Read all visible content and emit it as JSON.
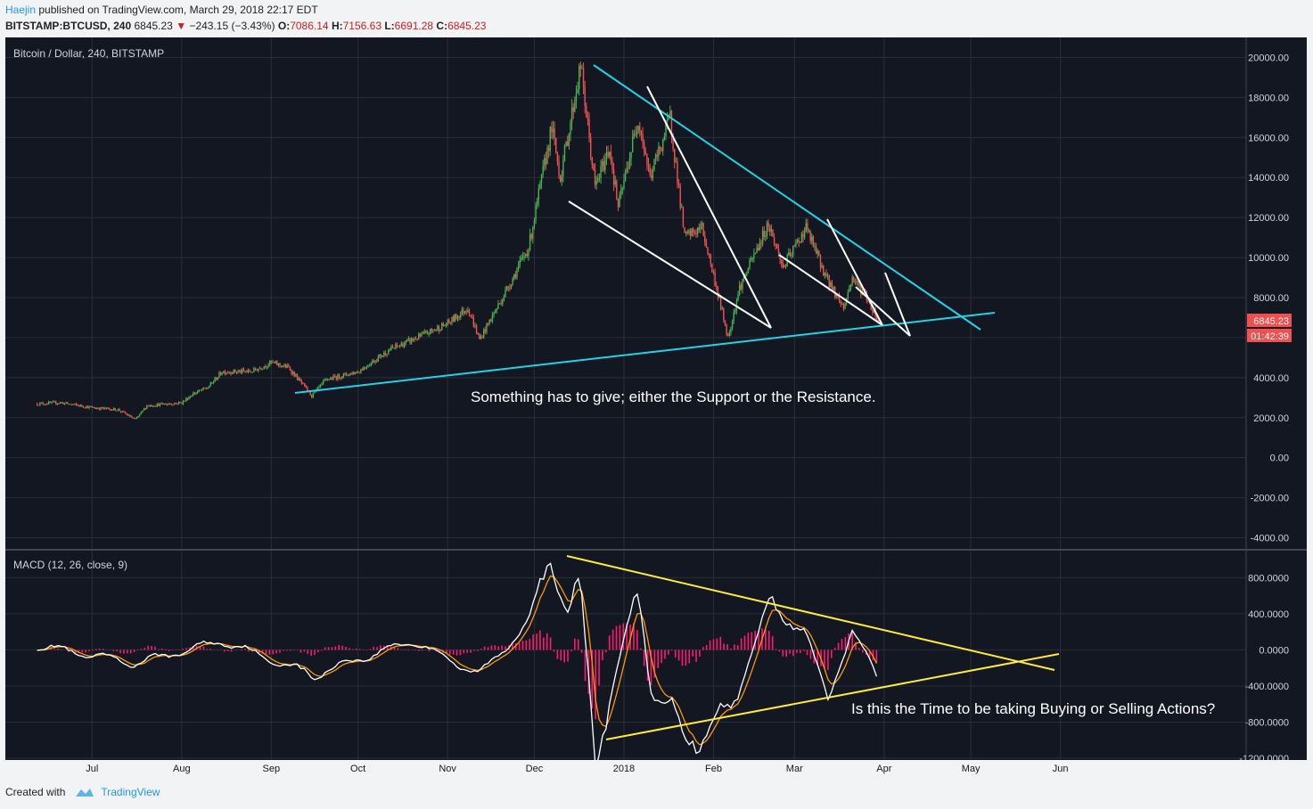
{
  "header": {
    "author": "Haejin",
    "published": "published on TradingView.com, March 29, 2018 22:17 EDT",
    "symbol": "BITSTAMP:BTCUSD, 240",
    "last": "6845.23",
    "down_arrow": "▼",
    "change": "−243.15 (−3.43%)",
    "o_label": "O:",
    "o_value": "7086.14",
    "h_label": "H:",
    "h_value": "7156.63",
    "l_label": "L:",
    "l_value": "6691.28",
    "c_label": "C:",
    "c_value": "6845.23"
  },
  "footer": {
    "created_with": "Created with",
    "brand": "TradingView"
  },
  "colors": {
    "background": "#131722",
    "grid": "#2a2e39",
    "up": "#4caf50",
    "down": "#ef5350",
    "trendline_cyan": "#22d3e6",
    "trendline_white": "#ffffff",
    "trendline_yellow": "#ffeb3b",
    "macd_line": "#ffffff",
    "signal_line": "#ff9800",
    "histogram": "#ff1a73",
    "price_badge": "#f05050"
  },
  "chart_data": [
    {
      "type": "candlestick",
      "title": "Bitcoin / Dollar, 240, BITSTAMP",
      "x_ticks": [
        "Jul",
        "Aug",
        "Sep",
        "Oct",
        "Nov",
        "Dec",
        "2018",
        "Feb",
        "Mar",
        "Apr",
        "May",
        "Jun"
      ],
      "y_ticks": [
        "20000.00",
        "18000.00",
        "16000.00",
        "14000.00",
        "12000.00",
        "10000.00",
        "8000.00",
        "6000.00",
        "4000.00",
        "2000.00",
        "0.00",
        "-2000.00",
        "-4000.00"
      ],
      "ylim": [
        -4600,
        21000
      ],
      "last_price_label": "6845.23",
      "countdown_label": "01:42:39",
      "price_path": [
        [
          "2017-06-12",
          2700
        ],
        [
          "2017-06-20",
          2750
        ],
        [
          "2017-07-01",
          2500
        ],
        [
          "2017-07-10",
          2400
        ],
        [
          "2017-07-16",
          1900
        ],
        [
          "2017-07-20",
          2600
        ],
        [
          "2017-08-01",
          2750
        ],
        [
          "2017-08-05",
          3200
        ],
        [
          "2017-08-10",
          3500
        ],
        [
          "2017-08-15",
          4300
        ],
        [
          "2017-08-25",
          4300
        ],
        [
          "2017-09-01",
          4750
        ],
        [
          "2017-09-07",
          4500
        ],
        [
          "2017-09-15",
          3100
        ],
        [
          "2017-09-20",
          3900
        ],
        [
          "2017-10-01",
          4300
        ],
        [
          "2017-10-12",
          5400
        ],
        [
          "2017-10-20",
          5900
        ],
        [
          "2017-11-01",
          6700
        ],
        [
          "2017-11-08",
          7500
        ],
        [
          "2017-11-12",
          5900
        ],
        [
          "2017-11-20",
          8000
        ],
        [
          "2017-11-29",
          10500
        ],
        [
          "2017-12-07",
          16500
        ],
        [
          "2017-12-10",
          14000
        ],
        [
          "2017-12-17",
          19600
        ],
        [
          "2017-12-22",
          13500
        ],
        [
          "2017-12-27",
          15500
        ],
        [
          "2017-12-30",
          12500
        ],
        [
          "2018-01-06",
          17000
        ],
        [
          "2018-01-10",
          14000
        ],
        [
          "2018-01-17",
          17000
        ],
        [
          "2018-01-22",
          11000
        ],
        [
          "2018-01-28",
          11500
        ],
        [
          "2018-02-02",
          8500
        ],
        [
          "2018-02-06",
          6000
        ],
        [
          "2018-02-10",
          8500
        ],
        [
          "2018-02-20",
          11700
        ],
        [
          "2018-02-25",
          9500
        ],
        [
          "2018-03-05",
          11500
        ],
        [
          "2018-03-12",
          9000
        ],
        [
          "2018-03-18",
          7500
        ],
        [
          "2018-03-21",
          9000
        ],
        [
          "2018-03-26",
          8000
        ],
        [
          "2018-03-30",
          6845
        ]
      ],
      "annotation": "Something has to give; either the Support or the Resistance."
    },
    {
      "type": "line",
      "title": "MACD (12, 26, close, 9)",
      "y_ticks": [
        "800.0000",
        "400.0000",
        "0.0000",
        "-400.0000",
        "-800.0000",
        "-1200.0000"
      ],
      "ylim": [
        -1210,
        1100
      ],
      "series": [
        {
          "values": [
            [
              "2017-06-12",
              50
            ],
            [
              "2017-07-16",
              -150
            ],
            [
              "2017-08-15",
              100
            ],
            [
              "2017-09-15",
              -280
            ],
            [
              "2017-10-20",
              100
            ],
            [
              "2017-11-12",
              -280
            ],
            [
              "2017-11-29",
              300
            ],
            [
              "2017-12-07",
              1100
            ],
            [
              "2017-12-12",
              400
            ],
            [
              "2017-12-17",
              700
            ],
            [
              "2017-12-22",
              -1150
            ],
            [
              "2018-01-06",
              700
            ],
            [
              "2018-01-10",
              -400
            ],
            [
              "2018-01-22",
              -950
            ],
            [
              "2018-02-06",
              -750
            ],
            [
              "2018-02-20",
              500
            ],
            [
              "2018-03-05",
              200
            ],
            [
              "2018-03-12",
              -550
            ],
            [
              "2018-03-21",
              200
            ],
            [
              "2018-03-30",
              -300
            ]
          ]
        },
        {
          "values": []
        }
      ],
      "annotation": "Is this the Time to be taking Buying or Selling Actions?"
    }
  ]
}
